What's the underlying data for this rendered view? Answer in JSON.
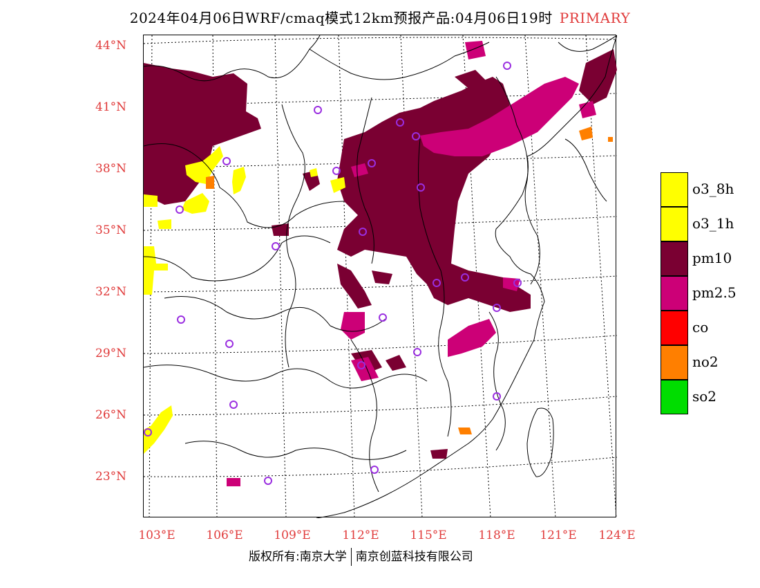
{
  "title": {
    "main": "2024年04月06日WRF/cmaq模式12km预报产品:04月06日19时",
    "tag": "PRIMARY"
  },
  "map": {
    "lat_labels": [
      "44°N",
      "41°N",
      "38°N",
      "35°N",
      "32°N",
      "29°N",
      "26°N",
      "23°N"
    ],
    "lon_labels": [
      "103°E",
      "106°E",
      "109°E",
      "112°E",
      "115°E",
      "118°E",
      "121°E",
      "124°E"
    ]
  },
  "legend": [
    {
      "label": "o3_8h",
      "color": "#ffff00"
    },
    {
      "label": "o3_1h",
      "color": "#ffff00"
    },
    {
      "label": "pm10",
      "color": "#7a0032"
    },
    {
      "label": "pm2.5",
      "color": "#cc0077"
    },
    {
      "label": "co",
      "color": "#ff0000"
    },
    {
      "label": "no2",
      "color": "#ff7f00"
    },
    {
      "label": "so2",
      "color": "#00dd00"
    }
  ],
  "footer": {
    "left": "版权所有:南京大学",
    "right": "南京创蓝科技有限公司"
  },
  "colors": {
    "label": "#e03a3a",
    "pm10": "#7a0032",
    "pm25": "#cc0077",
    "o3": "#ffff00",
    "no2": "#ff7f00",
    "site": "#9a2ee0"
  }
}
